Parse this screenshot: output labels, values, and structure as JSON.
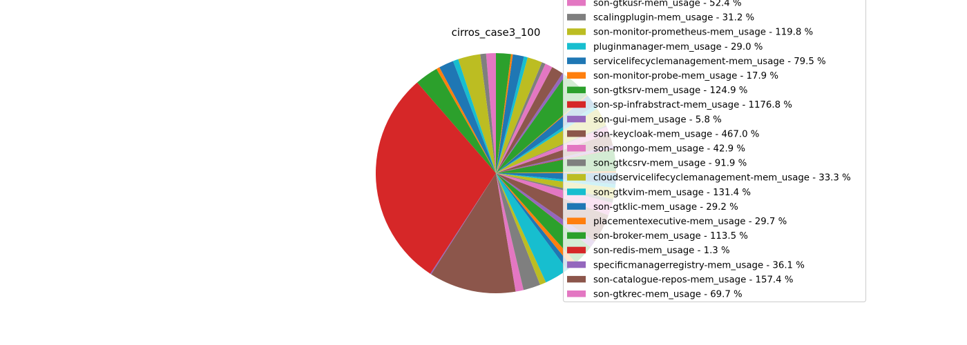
{
  "chart_data": {
    "type": "pie",
    "title": "cirros_case3_100",
    "start_angle_deg": 90,
    "direction": "counterclockwise",
    "legend_position": "upper-right",
    "slices": [
      {
        "label": "son-gtkusr-mem_usage - 52.4 %",
        "value": 52.4,
        "color": "#e377c2"
      },
      {
        "label": "scalingplugin-mem_usage - 31.2 %",
        "value": 31.2,
        "color": "#7f7f7f"
      },
      {
        "label": "son-monitor-prometheus-mem_usage - 119.8 %",
        "value": 119.8,
        "color": "#bcbd22"
      },
      {
        "label": "pluginmanager-mem_usage - 29.0 %",
        "value": 29.0,
        "color": "#17becf"
      },
      {
        "label": "servicelifecyclemanagement-mem_usage - 79.5 %",
        "value": 79.5,
        "color": "#1f77b4"
      },
      {
        "label": "son-monitor-probe-mem_usage - 17.9 %",
        "value": 17.9,
        "color": "#ff7f0e"
      },
      {
        "label": "son-gtksrv-mem_usage - 124.9 %",
        "value": 124.9,
        "color": "#2ca02c"
      },
      {
        "label": "son-sp-infrabstract-mem_usage - 1176.8 %",
        "value": 1176.8,
        "color": "#d62728"
      },
      {
        "label": "son-gui-mem_usage - 5.8 %",
        "value": 5.8,
        "color": "#9467bd"
      },
      {
        "label": "son-keycloak-mem_usage - 467.0 %",
        "value": 467.0,
        "color": "#8c564b"
      },
      {
        "label": "son-mongo-mem_usage - 42.9 %",
        "value": 42.9,
        "color": "#e377c2"
      },
      {
        "label": "son-gtkcsrv-mem_usage - 91.9 %",
        "value": 91.9,
        "color": "#7f7f7f"
      },
      {
        "label": "cloudservicelifecyclemanagement-mem_usage - 33.3 %",
        "value": 33.3,
        "color": "#bcbd22"
      },
      {
        "label": "son-gtkvim-mem_usage - 131.4 %",
        "value": 131.4,
        "color": "#17becf"
      },
      {
        "label": "son-gtklic-mem_usage - 29.2 %",
        "value": 29.2,
        "color": "#1f77b4"
      },
      {
        "label": "placementexecutive-mem_usage - 29.7 %",
        "value": 29.7,
        "color": "#ff7f0e"
      },
      {
        "label": "son-broker-mem_usage - 113.5 %",
        "value": 113.5,
        "color": "#2ca02c"
      },
      {
        "label": "son-redis-mem_usage - 1.3 %",
        "value": 1.3,
        "color": "#d62728"
      },
      {
        "label": "specificmanagerregistry-mem_usage - 36.1 %",
        "value": 36.1,
        "color": "#9467bd"
      },
      {
        "label": "son-catalogue-repos-mem_usage - 157.4 %",
        "value": 157.4,
        "color": "#8c564b"
      },
      {
        "label": "son-gtkrec-mem_usage - 69.7 %",
        "value": 69.7,
        "color": "#e377c2"
      }
    ],
    "hidden_slices": [
      {
        "value": 20.0,
        "color": "#7f7f7f"
      },
      {
        "value": 60.0,
        "color": "#bcbd22"
      },
      {
        "value": 20.0,
        "color": "#17becf"
      },
      {
        "value": 60.0,
        "color": "#1f77b4"
      },
      {
        "value": 10.0,
        "color": "#ff7f0e"
      },
      {
        "value": 115.0,
        "color": "#2ca02c"
      },
      {
        "value": 5.0,
        "color": "#d62728"
      },
      {
        "value": 18.0,
        "color": "#9467bd"
      },
      {
        "value": 64.0,
        "color": "#8c564b"
      },
      {
        "value": 40.0,
        "color": "#e377c2"
      },
      {
        "value": 8.0,
        "color": "#7f7f7f"
      },
      {
        "value": 100.0,
        "color": "#bcbd22"
      },
      {
        "value": 22.0,
        "color": "#17becf"
      },
      {
        "value": 64.0,
        "color": "#1f77b4"
      },
      {
        "value": 6.0,
        "color": "#ff7f0e"
      },
      {
        "value": 152.0,
        "color": "#2ca02c"
      },
      {
        "value": 20.0,
        "color": "#9467bd"
      },
      {
        "value": 64.0,
        "color": "#8c564b"
      },
      {
        "value": 40.0,
        "color": "#e377c2"
      },
      {
        "value": 20.0,
        "color": "#7f7f7f"
      },
      {
        "value": 80.0,
        "color": "#bcbd22"
      },
      {
        "value": 20.0,
        "color": "#17becf"
      },
      {
        "value": 60.0,
        "color": "#1f77b4"
      },
      {
        "value": 10.0,
        "color": "#ff7f0e"
      },
      {
        "value": 80.0,
        "color": "#2ca02c"
      }
    ]
  }
}
